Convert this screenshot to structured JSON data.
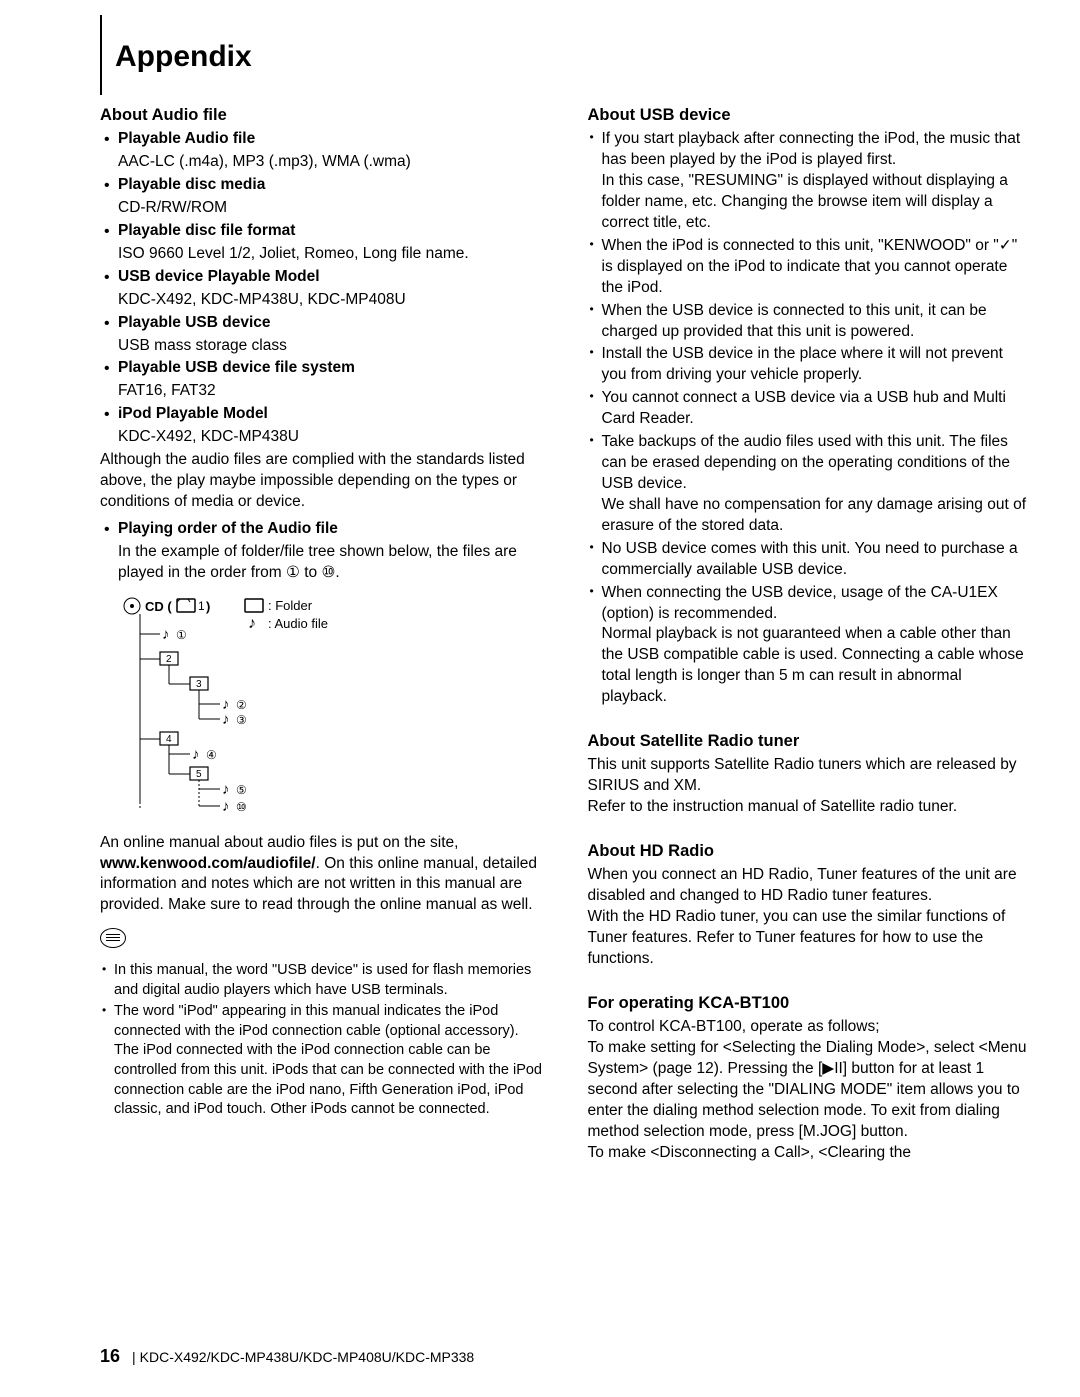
{
  "title": "Appendix",
  "left": {
    "audio": {
      "title": "About Audio file",
      "items": [
        {
          "h": "Playable Audio file",
          "t": "AAC-LC (.m4a), MP3 (.mp3), WMA (.wma)"
        },
        {
          "h": "Playable disc media",
          "t": "CD-R/RW/ROM"
        },
        {
          "h": "Playable disc file format",
          "t": "ISO 9660 Level 1/2, Joliet, Romeo, Long file name."
        },
        {
          "h": "USB device Playable Model",
          "t": "KDC-X492, KDC-MP438U, KDC-MP408U"
        },
        {
          "h": "Playable USB device",
          "t": "USB mass storage class"
        },
        {
          "h": "Playable USB device file system",
          "t": "FAT16, FAT32"
        },
        {
          "h": "iPod Playable Model",
          "t": "KDC-X492, KDC-MP438U"
        }
      ],
      "note": "Although the audio files are complied with the standards listed above, the play maybe impossible depending on the types or conditions of media or device.",
      "playorder_h": "Playing order of the Audio file",
      "playorder_t1": "In the example of folder/file tree shown below, the files are played in the order from ① to ⑩.",
      "legend_folder": ": Folder",
      "legend_audio": ": Audio file",
      "cd_label": "CD",
      "online": "An online manual about audio files is put on the site, ",
      "online_url": "www.kenwood.com/audiofile/",
      "online2": ". On this online manual, detailed information and notes which are not written in this manual are provided. Make sure to read through the online manual as well."
    },
    "notes": [
      "In this manual, the word \"USB device\" is used for flash memories and digital audio players which have USB terminals.",
      "The word \"iPod\" appearing in this manual indicates the iPod connected with the iPod connection cable (optional accessory). The iPod connected with the iPod connection cable can be controlled from this unit. iPods that can be connected with the iPod connection cable are the iPod nano, Fifth Generation iPod, iPod classic, and iPod touch. Other iPods cannot be connected."
    ]
  },
  "right": {
    "usb": {
      "title": "About USB device",
      "items": [
        "If you start playback after connecting the iPod, the music that has been played by the iPod is played first.\nIn this case, \"RESUMING\" is displayed without displaying a folder name, etc. Changing the browse item will display a correct title, etc.",
        "When the iPod is connected to this unit, \"KENWOOD\" or \"✓\" is displayed on the iPod to indicate that you cannot operate the iPod.",
        "When the USB device is connected to this unit, it can be charged up provided that this unit is powered.",
        "Install the USB device in the place where it will not prevent you from driving your vehicle properly.",
        "You cannot connect a USB device via a USB hub and Multi Card Reader.",
        "Take backups of the audio files used with this unit. The files can be erased depending on the operating conditions of the USB device.\nWe shall have no compensation for any damage arising out of erasure of the stored data.",
        "No USB device comes with this unit. You need to purchase a commercially available USB device.",
        "When connecting the USB device, usage of the CA-U1EX (option) is recommended.\nNormal playback is not guaranteed when a cable other than the USB compatible  cable is used. Connecting a cable whose total length is longer than 5 m can result in abnormal playback."
      ]
    },
    "sat": {
      "title": "About Satellite Radio tuner",
      "text": "This unit supports Satellite Radio tuners which are released by SIRIUS and XM.\nRefer to the instruction manual of Satellite radio tuner."
    },
    "hd": {
      "title": "About HD Radio",
      "text": "When you connect an HD Radio, Tuner features of the unit are disabled and changed to HD Radio tuner features.\nWith the HD Radio tuner, you can use the similar functions of Tuner features. Refer to Tuner features for how to use the functions."
    },
    "bt": {
      "title": "For operating KCA-BT100",
      "text": "To control KCA-BT100, operate as follows;\nTo make setting for <Selecting the Dialing Mode>, select <Menu System> (page 12). Pressing the [▶II] button for at least 1 second after selecting the \"DIALING MODE\" item allows you to enter the dialing method selection mode. To exit from dialing method selection mode, press [M.JOG] button.\nTo make <Disconnecting a Call>, <Clearing the"
    }
  },
  "footer": {
    "page": "16",
    "models": "KDC-X492/KDC-MP438U/KDC-MP408U/KDC-MP338"
  }
}
